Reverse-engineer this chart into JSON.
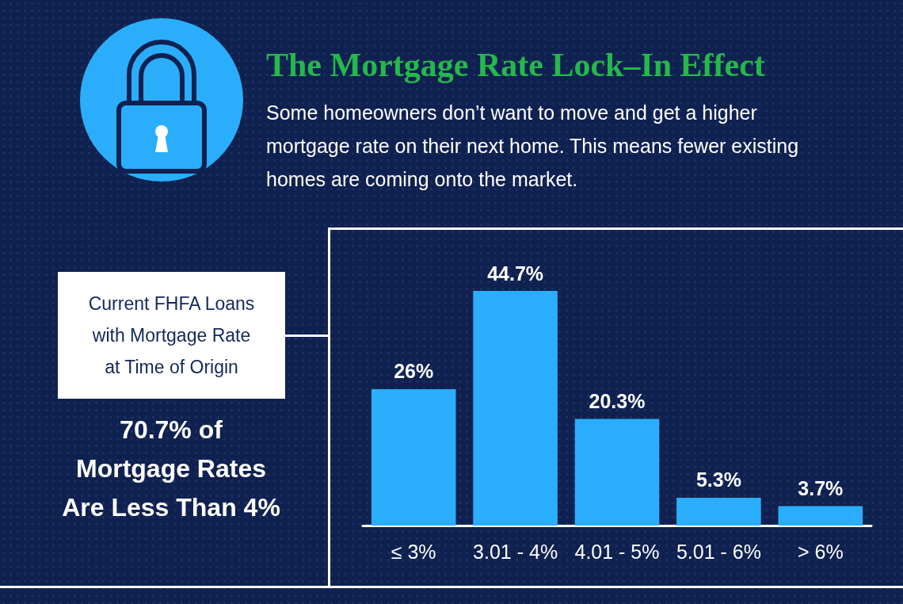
{
  "chart_data": {
    "type": "bar",
    "title": "The Mortgage Rate Lock–In Effect",
    "subtitle": "Some homeowners don’t want to move and get a higher mortgage rate on their next home. This means fewer existing homes are coming onto the market.",
    "categories": [
      "≤ 3%",
      "3.01 - 4%",
      "4.01 - 5%",
      "5.01 - 6%",
      "> 6%"
    ],
    "values": [
      26,
      44.7,
      20.3,
      5.3,
      3.7
    ],
    "color": "#2aaefc",
    "value_labels": [
      "26%",
      "44.7%",
      "20.3%",
      "5.3%",
      "3.7%"
    ],
    "annotations": [
      "Current FHFA Loans with Mortgage Rate at Time of Origin",
      "70.7% of Mortgage Rates Are Less Than 4%"
    ]
  }
}
